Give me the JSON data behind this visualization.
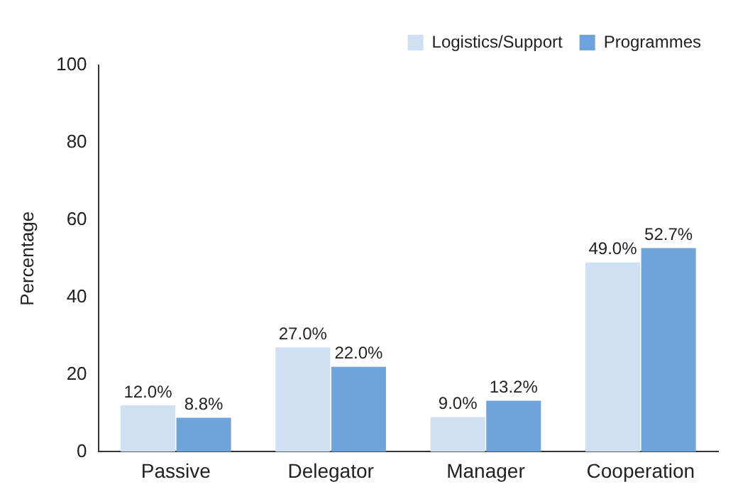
{
  "chart_data": {
    "type": "bar",
    "ylabel": "Percentage",
    "categories": [
      "Passive",
      "Delegator",
      "Manager",
      "Cooperation"
    ],
    "series": [
      {
        "name": "Logistics/Support",
        "color": "#cfe0f4",
        "values": [
          12.0,
          27.0,
          9.0,
          49.0
        ],
        "value_labels": [
          "12.0%",
          "27.0%",
          "9.0%",
          "49.0%"
        ]
      },
      {
        "name": "Programmes",
        "color": "#6fa3dc",
        "values": [
          8.8,
          22.0,
          13.2,
          52.7
        ],
        "value_labels": [
          "8.8%",
          "22.0%",
          "13.2%",
          "52.7%"
        ]
      }
    ],
    "ylim": [
      0,
      100
    ],
    "yticks": [
      0,
      20,
      40,
      60,
      80,
      100
    ],
    "grid": false,
    "legend": "top right"
  }
}
